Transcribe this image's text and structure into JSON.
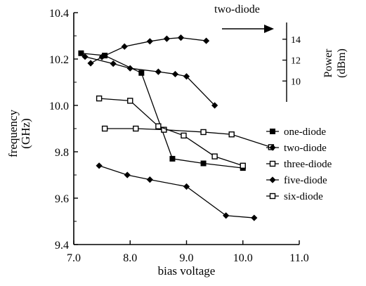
{
  "chart_data": {
    "type": "line",
    "x": {
      "label": "bias voltage",
      "range": [
        7.0,
        11.0
      ],
      "ticks": [
        7.0,
        8.0,
        9.0,
        10.0,
        11.0
      ],
      "tick_labels": [
        "7.0",
        "8.0",
        "9.0",
        "10.0",
        "11.0"
      ]
    },
    "y": {
      "label": "frequency (GHz)",
      "label_lines": [
        "frequency",
        "(GHz)"
      ],
      "range": [
        9.4,
        10.4
      ],
      "ticks": [
        9.4,
        9.6,
        9.8,
        10.0,
        10.2,
        10.4
      ],
      "tick_labels": [
        "9.4",
        "9.6",
        "9.8",
        "10.0",
        "10.2",
        "10.4"
      ]
    },
    "y2": {
      "label": "Power (dBm)",
      "label_lines": [
        "Power",
        "(dBm)"
      ],
      "range": [
        8.0,
        15.2
      ],
      "ticks": [
        10,
        12,
        14
      ],
      "tick_labels": [
        "10",
        "12",
        "14"
      ]
    },
    "grid": false,
    "legend_position": "right",
    "annotation": {
      "text": "two-diode",
      "arrow": "right"
    },
    "series": [
      {
        "name": "one-diode",
        "marker": "filled-square",
        "axis": "left",
        "points": [
          [
            7.13,
            10.225
          ],
          [
            7.55,
            10.215
          ],
          [
            8.2,
            10.14
          ],
          [
            8.75,
            9.77
          ],
          [
            9.3,
            9.75
          ],
          [
            10.0,
            9.73
          ]
        ]
      },
      {
        "name": "two-diode",
        "marker": "filled-diamond",
        "axis": "left",
        "points": [
          [
            7.2,
            10.21
          ],
          [
            7.7,
            10.18
          ],
          [
            8.0,
            10.16
          ],
          [
            8.5,
            10.145
          ],
          [
            8.8,
            10.135
          ],
          [
            9.0,
            10.125
          ],
          [
            9.5,
            10.0
          ]
        ]
      },
      {
        "name": "three-diode",
        "marker": "open-square",
        "axis": "left",
        "points": [
          [
            7.55,
            9.9
          ],
          [
            8.1,
            9.9
          ],
          [
            8.6,
            9.895
          ],
          [
            9.3,
            9.885
          ],
          [
            9.8,
            9.875
          ],
          [
            10.5,
            9.82
          ]
        ]
      },
      {
        "name": "five-diode",
        "marker": "filled-diamond",
        "axis": "left",
        "points": [
          [
            7.45,
            9.74
          ],
          [
            7.95,
            9.7
          ],
          [
            8.35,
            9.68
          ],
          [
            9.0,
            9.65
          ],
          [
            9.7,
            9.525
          ],
          [
            10.2,
            9.515
          ]
        ]
      },
      {
        "name": "six-diode",
        "marker": "open-square",
        "axis": "left",
        "points": [
          [
            7.45,
            10.03
          ],
          [
            8.0,
            10.02
          ],
          [
            8.5,
            9.91
          ],
          [
            8.95,
            9.87
          ],
          [
            9.5,
            9.78
          ],
          [
            10.0,
            9.74
          ]
        ]
      },
      {
        "name": "two-diode power",
        "marker": "filled-diamond",
        "axis": "right",
        "points": [
          [
            7.3,
            11.7
          ],
          [
            7.5,
            12.3
          ],
          [
            7.9,
            13.3
          ],
          [
            8.35,
            13.8
          ],
          [
            8.65,
            14.05
          ],
          [
            8.9,
            14.15
          ],
          [
            9.35,
            13.85
          ]
        ]
      }
    ]
  }
}
